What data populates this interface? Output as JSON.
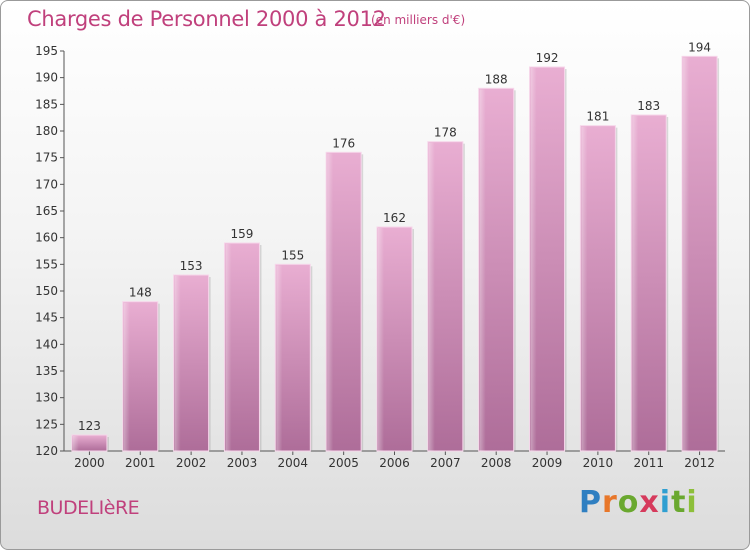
{
  "header": {
    "title": "Charges de Personnel 2000 à 2012",
    "subtitle": "(en milliers d'€)"
  },
  "footer": {
    "city": "BUDELIèRE",
    "brand": [
      "P",
      "r",
      "o",
      "x",
      "i",
      "t",
      "i"
    ]
  },
  "colors": {
    "accent": "#c0407c",
    "bar_light": "#e8acd0",
    "bar_dark": "#b0709c"
  },
  "chart_data": {
    "type": "bar",
    "title": "Charges de Personnel 2000 à 2012",
    "subtitle": "(en milliers d'€)",
    "xlabel": "",
    "ylabel": "",
    "categories": [
      "2000",
      "2001",
      "2002",
      "2003",
      "2004",
      "2005",
      "2006",
      "2007",
      "2008",
      "2009",
      "2010",
      "2011",
      "2012"
    ],
    "values": [
      123,
      148,
      153,
      159,
      155,
      176,
      162,
      178,
      188,
      192,
      181,
      183,
      194
    ],
    "ylim": [
      120,
      195
    ],
    "yticks": [
      120,
      125,
      130,
      135,
      140,
      145,
      150,
      155,
      160,
      165,
      170,
      175,
      180,
      185,
      190,
      195
    ],
    "grid": false,
    "legend": "none"
  }
}
